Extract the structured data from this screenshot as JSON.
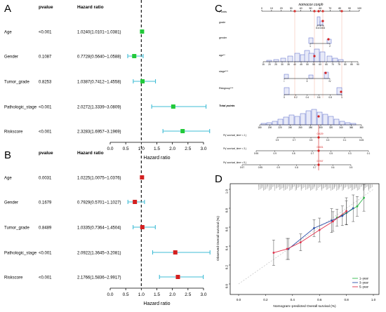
{
  "panels": {
    "A": "A",
    "B": "B",
    "C": "C",
    "D": "D"
  },
  "chart_data": [
    {
      "panel": "A",
      "type": "forest",
      "columns": [
        "pvalue",
        "Hazard ratio"
      ],
      "xlabel": "Hazard ratio",
      "xlim": [
        0,
        3
      ],
      "xticks": [
        "0.0",
        "0.5",
        "1.0",
        "1.5",
        "2.0",
        "2.5",
        "3.0"
      ],
      "reference_line": 1,
      "marker_color": "#22c93a",
      "ci_color": "#3fbcd6",
      "rows": [
        {
          "label": "Age",
          "pvalue": "<0.001",
          "hr_text": "1.0240(1.0101~1.0381)",
          "hr": 1.024,
          "lo": 1.0101,
          "hi": 1.0381
        },
        {
          "label": "Gender",
          "pvalue": "0.1087",
          "hr_text": "0.7728(0.5640~1.0588)",
          "hr": 0.7728,
          "lo": 0.564,
          "hi": 1.0588
        },
        {
          "label": "Tumor_grade",
          "pvalue": "0.8253",
          "hr_text": "1.0387(0.7412~1.4558)",
          "hr": 1.0387,
          "lo": 0.7412,
          "hi": 1.4558
        },
        {
          "label": "Pathologic_stage",
          "pvalue": "<0.001",
          "hr_text": "2.0272(1.3339~3.0809)",
          "hr": 2.0272,
          "lo": 1.3339,
          "hi": 3.0809
        },
        {
          "label": "Riskscore",
          "pvalue": "<0.001",
          "hr_text": "2.3283(1.6957~3.1969)",
          "hr": 2.3283,
          "lo": 1.6957,
          "hi": 3.1969
        }
      ]
    },
    {
      "panel": "B",
      "type": "forest",
      "columns": [
        "pvalue",
        "Hazard ratio"
      ],
      "xlabel": "Hazard ratio",
      "xlim": [
        0,
        3
      ],
      "xticks": [
        "0.0",
        "0.5",
        "1.0",
        "1.5",
        "2.0",
        "2.5",
        "3.0"
      ],
      "reference_line": 1,
      "marker_color": "#d42020",
      "ci_color": "#3fbcd6",
      "rows": [
        {
          "label": "Age",
          "pvalue": "0.0031",
          "hr_text": "1.0225(1.0075~1.0376)",
          "hr": 1.0225,
          "lo": 1.0075,
          "hi": 1.0376
        },
        {
          "label": "Gender",
          "pvalue": "0.1679",
          "hr_text": "0.7929(0.5701~1.1027)",
          "hr": 0.7929,
          "lo": 0.5701,
          "hi": 1.1027
        },
        {
          "label": "Tumor_grade",
          "pvalue": "0.8489",
          "hr_text": "1.0335(0.7364~1.4504)",
          "hr": 1.0335,
          "lo": 0.7364,
          "hi": 1.4504
        },
        {
          "label": "Pathologic_stage",
          "pvalue": "<0.001",
          "hr_text": "2.0922(1.3645~3.2081)",
          "hr": 2.0922,
          "lo": 1.3645,
          "hi": 3.2081
        },
        {
          "label": "Riskscore",
          "pvalue": "<0.001",
          "hr_text": "2.1766(1.5836~2.9917)",
          "hr": 2.1766,
          "lo": 1.5836,
          "hi": 2.9917
        }
      ]
    },
    {
      "panel": "C",
      "type": "nomogram",
      "title": "nomocox coxph",
      "points_label": "Points",
      "points_ticks": [
        "0",
        "10",
        "20",
        "30",
        "40",
        "50",
        "60",
        "70",
        "80",
        "90",
        "100"
      ],
      "rows": [
        {
          "label": "grade",
          "ticks": [
            "G1",
            "G3",
            "G4"
          ]
        },
        {
          "label": "gender",
          "ticks": [
            "1",
            "2"
          ]
        },
        {
          "label": "age**",
          "ticks": [
            "15",
            "20",
            "25",
            "30",
            "35",
            "40",
            "45",
            "50",
            "55",
            "60",
            "65",
            "70",
            "75",
            "80",
            "85",
            "90"
          ]
        },
        {
          "label": "stage***",
          "ticks": [
            "I",
            "II",
            "IV"
          ]
        },
        {
          "label": "Riskgroup***",
          "ticks": [
            "0",
            "0.2",
            "0.4",
            "0.6",
            "0.8",
            "1"
          ]
        }
      ],
      "total_label": "Total points",
      "total_ticks": [
        "180",
        "200",
        "220",
        "240",
        "260",
        "280",
        "300",
        "320",
        "340",
        "360",
        "380"
      ],
      "survival_rows": [
        {
          "label": "Pr( survival_time < 1 )",
          "highlight": "0.429",
          "ticks": [
            "0.9",
            "0.7",
            "0.5",
            "0.3",
            "0.1",
            "0.05"
          ]
        },
        {
          "label": "Pr( survival_time < 3 )",
          "highlight": "0.631",
          "ticks": [
            "0.95",
            "0.9",
            "0.8",
            "0.7",
            "0.5",
            "0.3",
            "0.1"
          ]
        },
        {
          "label": "Pr( survival_time < 5 )",
          "highlight": "0.767",
          "ticks": [
            "0.97",
            "0.95",
            "0.9",
            "0.8",
            "0.7",
            "0.6",
            "0.5"
          ]
        }
      ],
      "accent_color": "#d42020",
      "hist_color": "#5566c8"
    },
    {
      "panel": "D",
      "type": "line",
      "xlabel": "Nomogram−predicted Overall survival (%)",
      "ylabel": "Observed Overall survival (%)",
      "xlim": [
        0,
        1
      ],
      "ylim": [
        0,
        1
      ],
      "xticks": [
        "0.0",
        "0.2",
        "0.4",
        "0.6",
        "0.8",
        "1.0"
      ],
      "yticks": [
        "0.0",
        "0.2",
        "0.4",
        "0.6",
        "0.8",
        "1.0"
      ],
      "legend_position": "bottom-right",
      "series": [
        {
          "name": "1−year",
          "color": "#2fb84a",
          "x": [
            0.73,
            0.8,
            0.88,
            0.93
          ],
          "y": [
            0.7,
            0.75,
            0.82,
            0.91
          ]
        },
        {
          "name": "3−year",
          "color": "#2b4ea8",
          "x": [
            0.37,
            0.56,
            0.69,
            0.77,
            0.85
          ],
          "y": [
            0.37,
            0.59,
            0.67,
            0.72,
            0.8
          ]
        },
        {
          "name": "5−year",
          "color": "#e0304a",
          "x": [
            0.26,
            0.36,
            0.46,
            0.6,
            0.7,
            0.8
          ],
          "y": [
            0.33,
            0.37,
            0.44,
            0.57,
            0.66,
            0.77
          ]
        }
      ]
    }
  ]
}
